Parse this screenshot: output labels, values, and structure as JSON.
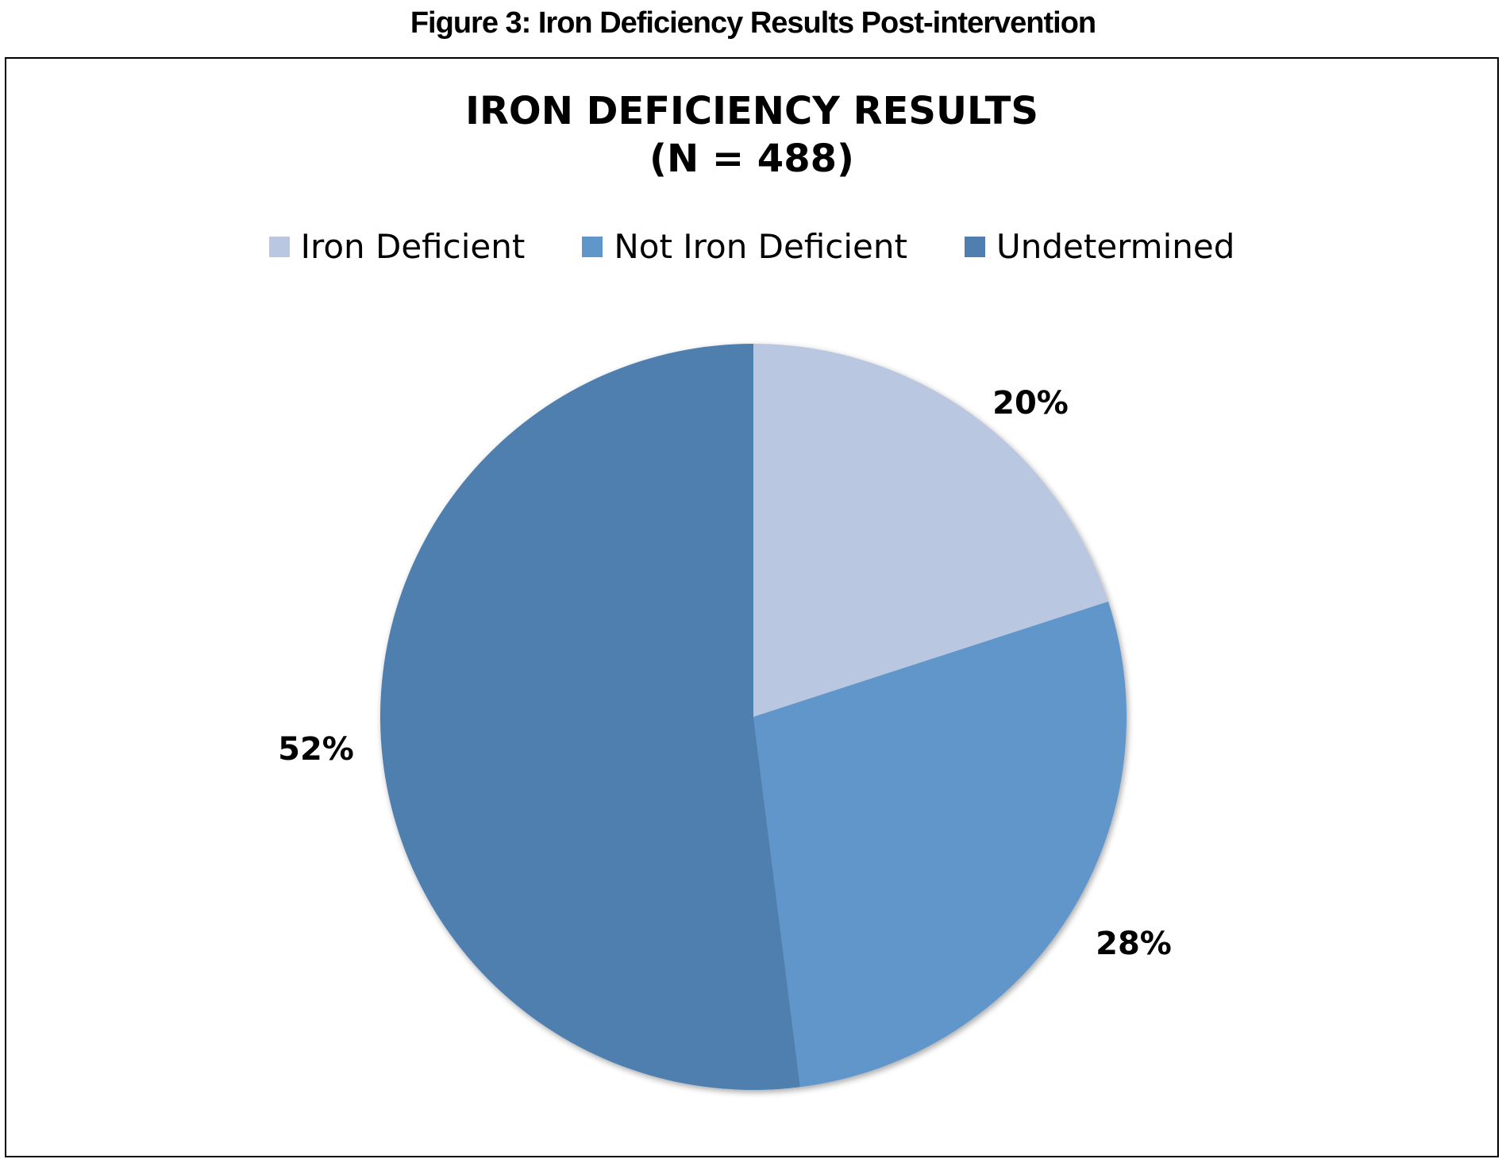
{
  "figure_caption": "Figure 3: Iron Deficiency Results Post-intervention",
  "chart_data": {
    "type": "pie",
    "title_lines": [
      "IRON DEFICIENCY RESULTS",
      "(N = 488)"
    ],
    "legend_position": "top",
    "slices": [
      {
        "name": "Iron Deficient",
        "value": 20,
        "label": "20%",
        "color": "#B9C7E1"
      },
      {
        "name": "Not Iron Deficient",
        "value": 28,
        "label": "28%",
        "color": "#6196CA"
      },
      {
        "name": "Undetermined",
        "value": 52,
        "label": "52%",
        "color": "#507FAF"
      }
    ]
  }
}
